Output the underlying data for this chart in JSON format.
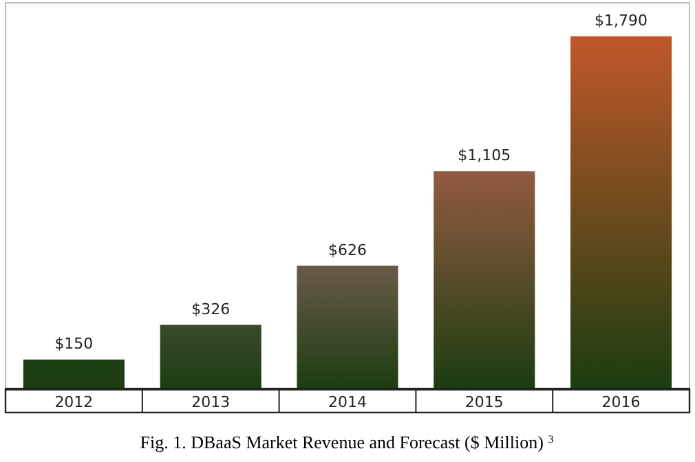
{
  "chart_data": {
    "type": "bar",
    "title": "Fig. 1. DBaaS Market Revenue and Forecast ($ Million) $^{3}$",
    "categories": [
      "2012",
      "2013",
      "2014",
      "2015",
      "2016"
    ],
    "values": [
      150,
      326,
      626,
      1105,
      1790
    ],
    "value_labels": [
      "$150",
      "$326",
      "$626",
      "$1,105",
      "$1,790"
    ],
    "colors": [
      "#1e3f15",
      "#3a4a2a",
      "#6a5a48",
      "#935a42",
      "#c0582a"
    ]
  }
}
